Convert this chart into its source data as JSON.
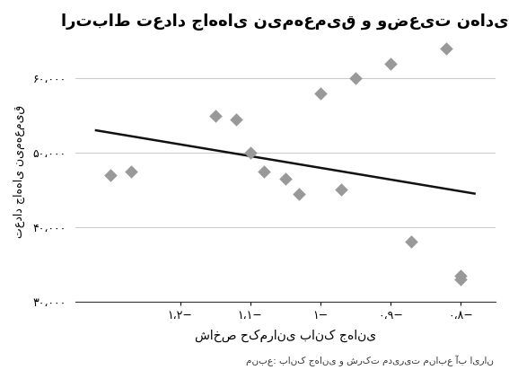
{
  "title": "ارتباط تعداد جاه‌های نیمه‌عمیق و وضعیت نهادی",
  "xlabel": "شاخص حکمرانی بانک جهانی",
  "ylabel": "تعداد جاه‌های نیمه‌عمیق",
  "source": "منبع: بانک جهانی و شرکت مدیریت منابع آب ایران",
  "scatter_x": [
    -1.3,
    -1.27,
    -1.15,
    -1.12,
    -1.1,
    -1.08,
    -1.05,
    -1.03,
    -1.0,
    -0.97,
    -0.95,
    -0.9,
    -0.87,
    -0.82,
    -0.8,
    -0.8
  ],
  "scatter_y": [
    47000,
    47500,
    55000,
    54500,
    50000,
    47500,
    46500,
    44500,
    58000,
    45000,
    60000,
    62000,
    38000,
    64000,
    33000,
    33500
  ],
  "line_x": [
    -1.32,
    -0.78
  ],
  "line_y": [
    53000,
    44500
  ],
  "xlim": [
    -1.35,
    -0.75
  ],
  "ylim": [
    30000,
    65000
  ],
  "xticks": [
    -1.2,
    -1.1,
    -1.0,
    -0.9,
    -0.8
  ],
  "yticks": [
    30000,
    40000,
    50000,
    60000
  ],
  "ytick_labels": [
    "۳۰،۰۰۰",
    "۴۰،۰۰۰",
    "۵۰،۰۰۰",
    "۶۰،۰۰۰"
  ],
  "xtick_labels": [
    "۱،۲−",
    "۱،۱−",
    "۱−",
    "۰،۹−",
    "۰،۸−"
  ],
  "dot_color": "#999999",
  "line_color": "#111111",
  "bg_color": "#ffffff",
  "grid_color": "#cccccc"
}
